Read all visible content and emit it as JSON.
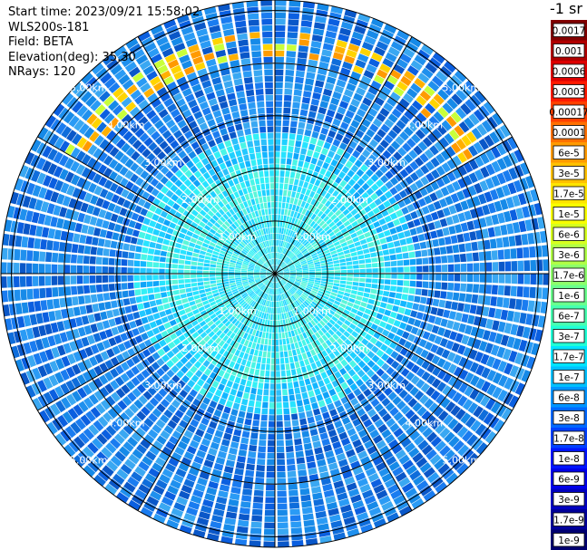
{
  "header": {
    "start_time": "Start time: 2023/09/21 15:58:02",
    "instrument": "WLS200s-181",
    "field": "Field: BETA",
    "elevation": "Elevation(deg): 35.30",
    "nrays": "NRays: 120"
  },
  "colorbar": {
    "unit_label": "-1 sr",
    "labels": [
      "0.0017",
      "0.001",
      "0.0006",
      "0.0003",
      "0.00017",
      "0.0001",
      "6e-5",
      "3e-5",
      "1.7e-5",
      "1e-5",
      "6e-6",
      "3e-6",
      "1.7e-6",
      "1e-6",
      "6e-7",
      "3e-7",
      "1.7e-7",
      "1e-7",
      "6e-8",
      "3e-8",
      "1.7e-8",
      "1e-8",
      "6e-9",
      "3e-9",
      "1.7e-9",
      "1e-9"
    ],
    "colors": [
      "#800000",
      "#b00000",
      "#dd0000",
      "#ff1a00",
      "#ff4000",
      "#ff7000",
      "#ff9a00",
      "#ffc000",
      "#ffe400",
      "#f8ff00",
      "#d6ff20",
      "#b0ff47",
      "#8dff6a",
      "#6aff8d",
      "#47ffb0",
      "#20ffd6",
      "#00e4ff",
      "#00c0ff",
      "#0094ff",
      "#0068ff",
      "#0040ff",
      "#0014ff",
      "#0000e8",
      "#0000c0",
      "#00009a",
      "#000070"
    ]
  },
  "chart_data": {
    "type": "polar-ppi",
    "field": "BETA",
    "rays": 120,
    "range_rings_km": [
      1.0,
      2.0,
      3.0,
      4.0,
      5.0
    ],
    "max_range_km": 5.2,
    "ring_labels": [
      "1.00km",
      "2.00km",
      "3.00km",
      "4.00km",
      "5.00km"
    ],
    "grid": true,
    "high_beta_arc": {
      "range_km": [
        4.1,
        4.6
      ],
      "sector_deg": [
        -60,
        60
      ]
    }
  }
}
